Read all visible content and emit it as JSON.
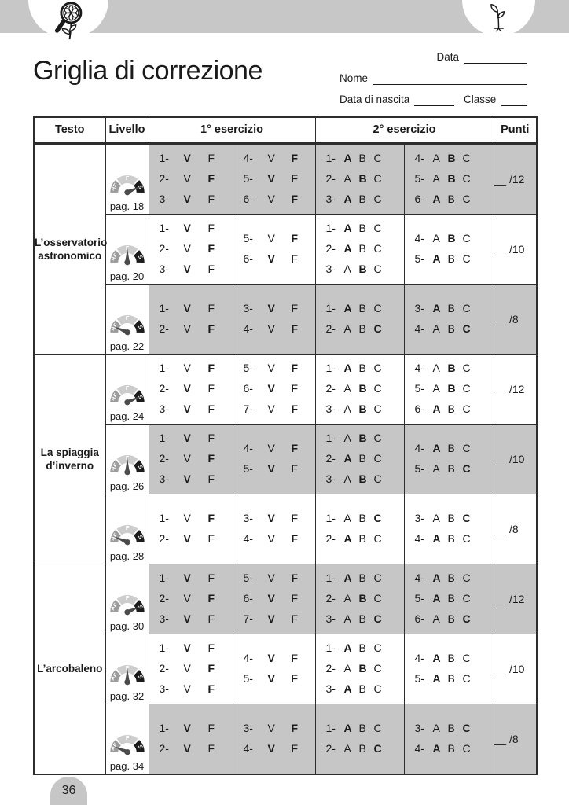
{
  "page_number": "36",
  "header": {
    "title": "Griglia di correzione",
    "fields": {
      "data_label": "Data",
      "nome_label": "Nome",
      "nascita_label": "Data di nascita",
      "classe_label": "Classe"
    }
  },
  "icons": {
    "left": "magnifier-flower",
    "right": "sprout"
  },
  "colors": {
    "band": "#c7c7c7",
    "cell_gray": "#c6c6c6",
    "border": "#2d2d2d",
    "text": "#1a1a1a",
    "gauge_af": "#9c9c9c",
    "gauge_f": "#cdcdcd",
    "gauge_s": "#1c1c1c",
    "gauge_needle": "#4b4b4b"
  },
  "table": {
    "headers": {
      "testo": "Testo",
      "livello": "Livello",
      "es1": "1° esercizio",
      "es2": "2° esercizio",
      "punti": "Punti"
    },
    "vf_options": [
      "V",
      "F"
    ],
    "abc_options": [
      "A",
      "B",
      "C"
    ],
    "gauge_labels": [
      "AF",
      "F",
      "S"
    ],
    "groups": [
      {
        "title": "L’osservatorio astronomico",
        "rows": [
          {
            "page_label": "pag. 18",
            "level": "S",
            "shaded": true,
            "points": "__ /12",
            "vf": [
              [
                [
                  "1",
                  "V"
                ],
                [
                  "2",
                  "F"
                ],
                [
                  "3",
                  "V"
                ]
              ],
              [
                [
                  "4",
                  "F"
                ],
                [
                  "5",
                  "V"
                ],
                [
                  "6",
                  "F"
                ]
              ]
            ],
            "abc": [
              [
                [
                  "1",
                  "A"
                ],
                [
                  "2",
                  "B"
                ],
                [
                  "3",
                  "A"
                ]
              ],
              [
                [
                  "4",
                  "B"
                ],
                [
                  "5",
                  "B"
                ],
                [
                  "6",
                  "A"
                ]
              ]
            ]
          },
          {
            "page_label": "pag. 20",
            "level": "F",
            "shaded": false,
            "points": "__ /10",
            "vf": [
              [
                [
                  "1",
                  "V"
                ],
                [
                  "2",
                  "F"
                ],
                [
                  "3",
                  "V"
                ]
              ],
              [
                [
                  "5",
                  "F"
                ],
                [
                  "6",
                  "V"
                ]
              ]
            ],
            "abc": [
              [
                [
                  "1",
                  "A"
                ],
                [
                  "2",
                  "A"
                ],
                [
                  "3",
                  "B"
                ]
              ],
              [
                [
                  "4",
                  "B"
                ],
                [
                  "5",
                  "A"
                ]
              ]
            ]
          },
          {
            "page_label": "pag. 22",
            "level": "AF",
            "shaded": true,
            "points": "__ /8",
            "vf": [
              [
                [
                  "1",
                  "V"
                ],
                [
                  "2",
                  "F"
                ]
              ],
              [
                [
                  "3",
                  "V"
                ],
                [
                  "4",
                  "F"
                ]
              ]
            ],
            "abc": [
              [
                [
                  "1",
                  "A"
                ],
                [
                  "2",
                  "C"
                ]
              ],
              [
                [
                  "3",
                  "A"
                ],
                [
                  "4",
                  "C"
                ]
              ]
            ]
          }
        ]
      },
      {
        "title": "La spiaggia d’inverno",
        "rows": [
          {
            "page_label": "pag. 24",
            "level": "S",
            "shaded": false,
            "points": "__ /12",
            "vf": [
              [
                [
                  "1",
                  "F"
                ],
                [
                  "2",
                  "V"
                ],
                [
                  "3",
                  "V"
                ]
              ],
              [
                [
                  "5",
                  "F"
                ],
                [
                  "6",
                  "V"
                ],
                [
                  "7",
                  "F"
                ]
              ]
            ],
            "abc": [
              [
                [
                  "1",
                  "A"
                ],
                [
                  "2",
                  "B"
                ],
                [
                  "3",
                  "B"
                ]
              ],
              [
                [
                  "4",
                  "B"
                ],
                [
                  "5",
                  "B"
                ],
                [
                  "6",
                  "A"
                ]
              ]
            ]
          },
          {
            "page_label": "pag. 26",
            "level": "F",
            "shaded": true,
            "points": "__ /10",
            "vf": [
              [
                [
                  "1",
                  "V"
                ],
                [
                  "2",
                  "F"
                ],
                [
                  "3",
                  "V"
                ]
              ],
              [
                [
                  "4",
                  "F"
                ],
                [
                  "5",
                  "V"
                ]
              ]
            ],
            "abc": [
              [
                [
                  "1",
                  "B"
                ],
                [
                  "2",
                  "A"
                ],
                [
                  "3",
                  "B"
                ]
              ],
              [
                [
                  "4",
                  "A"
                ],
                [
                  "5",
                  "C"
                ]
              ]
            ]
          },
          {
            "page_label": "pag. 28",
            "level": "AF",
            "shaded": false,
            "points": "__ /8",
            "vf": [
              [
                [
                  "1",
                  "F"
                ],
                [
                  "2",
                  "V"
                ]
              ],
              [
                [
                  "3",
                  "V"
                ],
                [
                  "4",
                  "F"
                ]
              ]
            ],
            "abc": [
              [
                [
                  "1",
                  "C"
                ],
                [
                  "2",
                  "A"
                ]
              ],
              [
                [
                  "3",
                  "C"
                ],
                [
                  "4",
                  "A"
                ]
              ]
            ]
          }
        ]
      },
      {
        "title": "L’arcobaleno",
        "rows": [
          {
            "page_label": "pag. 30",
            "level": "S",
            "shaded": true,
            "points": "__ /12",
            "vf": [
              [
                [
                  "1",
                  "V"
                ],
                [
                  "2",
                  "F"
                ],
                [
                  "3",
                  "V"
                ]
              ],
              [
                [
                  "5",
                  "F"
                ],
                [
                  "6",
                  "V"
                ],
                [
                  "7",
                  "V"
                ]
              ]
            ],
            "abc": [
              [
                [
                  "1",
                  "A"
                ],
                [
                  "2",
                  "B"
                ],
                [
                  "3",
                  "C"
                ]
              ],
              [
                [
                  "4",
                  "A"
                ],
                [
                  "5",
                  "A"
                ],
                [
                  "6",
                  "C"
                ]
              ]
            ]
          },
          {
            "page_label": "pag. 32",
            "level": "F",
            "shaded": false,
            "points": "__ /10",
            "vf": [
              [
                [
                  "1",
                  "V"
                ],
                [
                  "2",
                  "F"
                ],
                [
                  "3",
                  "F"
                ]
              ],
              [
                [
                  "4",
                  "V"
                ],
                [
                  "5",
                  "V"
                ]
              ]
            ],
            "abc": [
              [
                [
                  "1",
                  "A"
                ],
                [
                  "2",
                  "B"
                ],
                [
                  "3",
                  "A"
                ]
              ],
              [
                [
                  "4",
                  "A"
                ],
                [
                  "5",
                  "A"
                ]
              ]
            ]
          },
          {
            "page_label": "pag. 34",
            "level": "AF",
            "shaded": true,
            "points": "__ /8",
            "vf": [
              [
                [
                  "1",
                  "V"
                ],
                [
                  "2",
                  "V"
                ]
              ],
              [
                [
                  "3",
                  "F"
                ],
                [
                  "4",
                  "V"
                ]
              ]
            ],
            "abc": [
              [
                [
                  "1",
                  "A"
                ],
                [
                  "2",
                  "C"
                ]
              ],
              [
                [
                  "3",
                  "C"
                ],
                [
                  "4",
                  "A"
                ]
              ]
            ]
          }
        ]
      }
    ]
  }
}
